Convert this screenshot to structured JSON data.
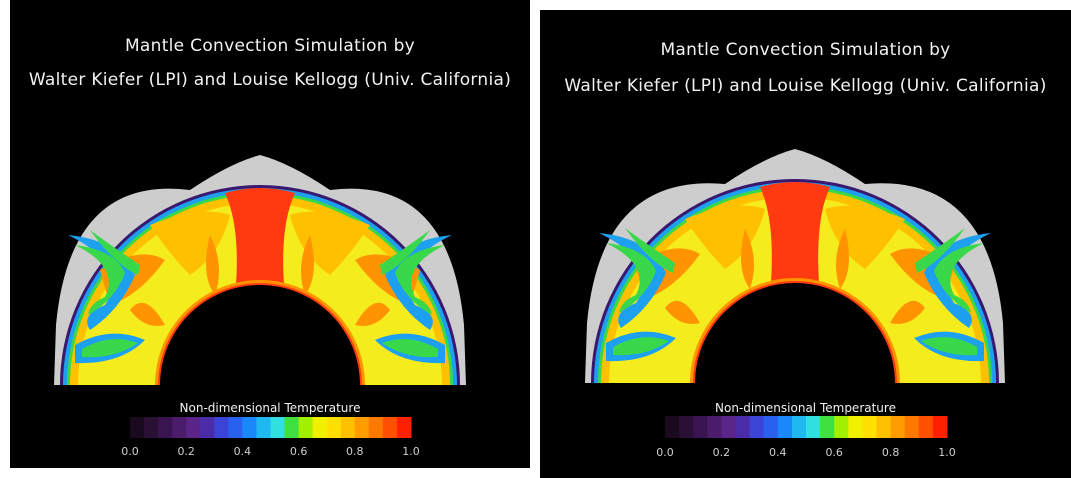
{
  "panels": [
    {
      "title_line1": "Mantle Convection Simulation by",
      "title_line2": "Walter Kiefer (LPI) and Louise Kellogg (Univ. California)",
      "colorbar_title": "Non-dimensional Temperature",
      "ticks": [
        "0.0",
        "0.2",
        "0.4",
        "0.6",
        "0.8",
        "1.0"
      ]
    },
    {
      "title_line1": "Mantle Convection Simulation by",
      "title_line2": "Walter Kiefer (LPI) and Louise Kellogg (Univ. California)",
      "colorbar_title": "Non-dimensional Temperature",
      "ticks": [
        "0.0",
        "0.2",
        "0.4",
        "0.6",
        "0.8",
        "1.0"
      ]
    }
  ],
  "colorbar_colors": [
    "#1a0a1e",
    "#2a1035",
    "#3a1450",
    "#4a1c6a",
    "#5a2488",
    "#4a2ca8",
    "#3c44d8",
    "#2a60f0",
    "#1a88f8",
    "#20b8f0",
    "#30e0e0",
    "#40e040",
    "#a0f000",
    "#f0f000",
    "#ffe000",
    "#ffc000",
    "#ff9c00",
    "#ff7800",
    "#ff5000",
    "#ff2000"
  ],
  "field_colors": {
    "background": "#000000",
    "topography": "#cdcdcd",
    "cold_boundary": "#3a1870",
    "cool_layer": "#1ea0f0",
    "green": "#39d84a",
    "mantle": "#f5ec1e",
    "warm": "#ffc000",
    "orange": "#ff9400",
    "hot": "#ff3a10"
  }
}
